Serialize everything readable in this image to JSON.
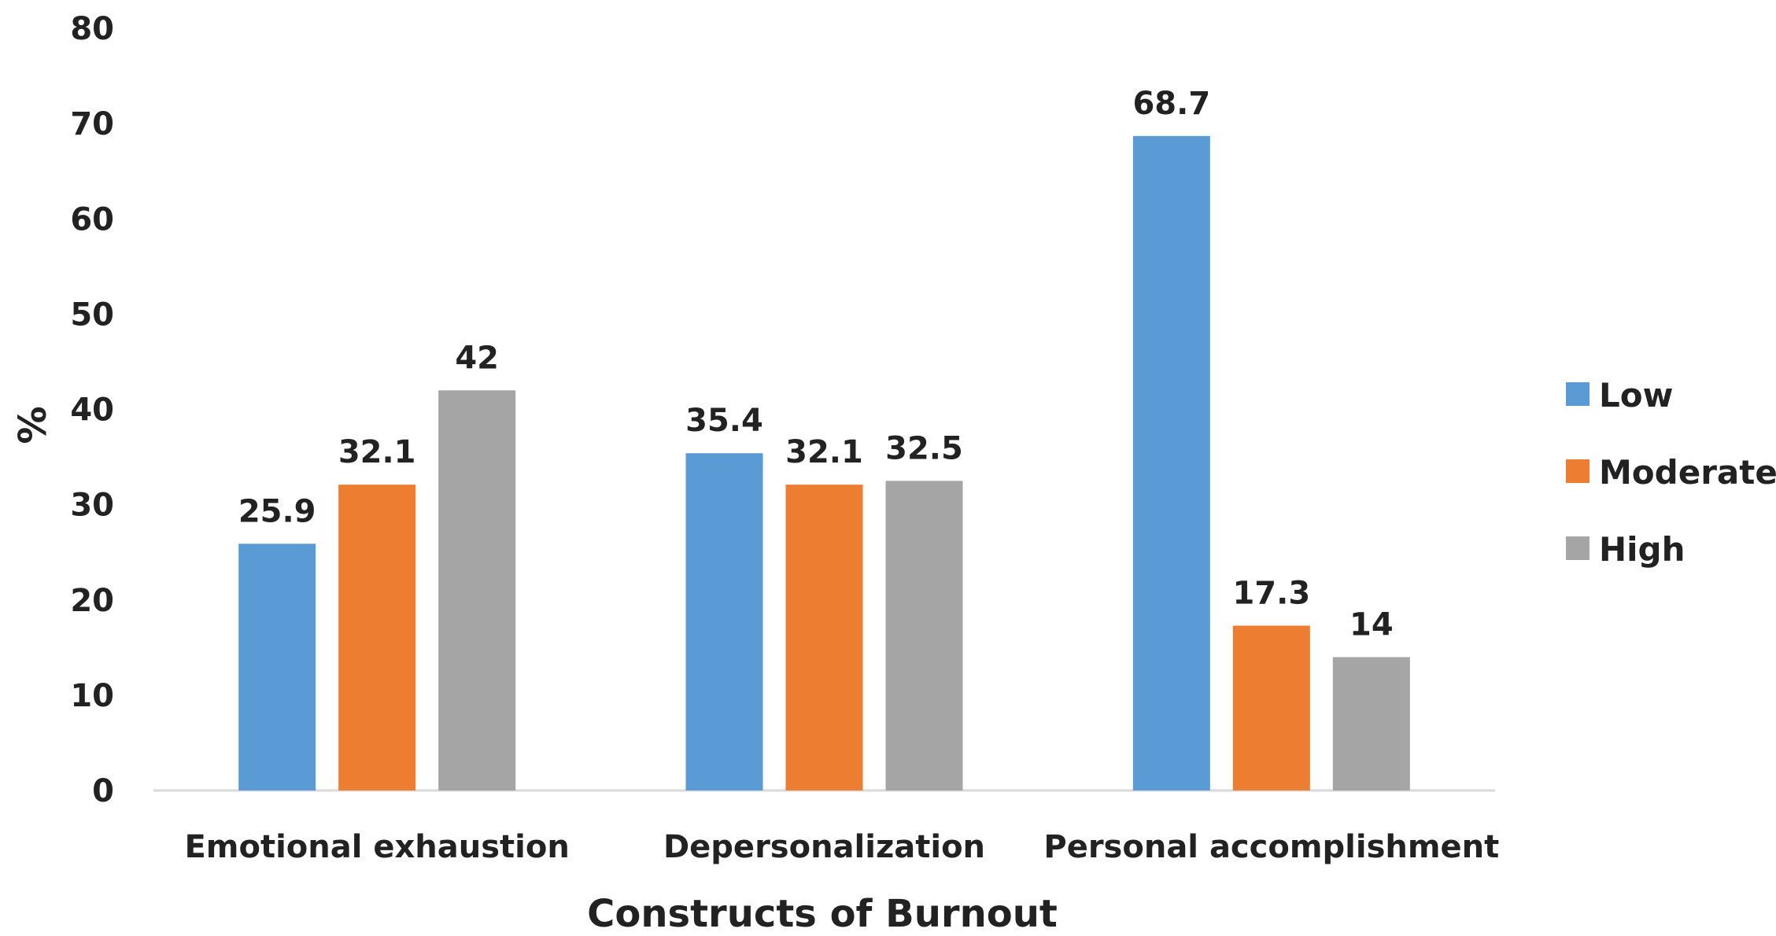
{
  "chart_data": {
    "type": "bar",
    "title": "",
    "xlabel": "Constructs of Burnout",
    "ylabel": "%",
    "ylim": [
      0,
      80
    ],
    "yticks": [
      0,
      10,
      20,
      30,
      40,
      50,
      60,
      70,
      80
    ],
    "categories": [
      "Emotional exhaustion",
      "Depersonalization",
      "Personal accomplishment"
    ],
    "series": [
      {
        "name": "Low",
        "color": "#5B9BD5",
        "values": [
          25.9,
          35.4,
          68.7
        ]
      },
      {
        "name": "Moderate",
        "color": "#ED7D31",
        "values": [
          32.1,
          32.1,
          17.3
        ]
      },
      {
        "name": "High",
        "color": "#A5A5A5",
        "values": [
          42,
          32.5,
          14
        ]
      }
    ],
    "data_labels": [
      [
        "25.9",
        "35.4",
        "68.7"
      ],
      [
        "32.1",
        "32.1",
        "17.3"
      ],
      [
        "42",
        "32.5",
        "14"
      ]
    ],
    "grid": false,
    "legend_position": "right"
  }
}
